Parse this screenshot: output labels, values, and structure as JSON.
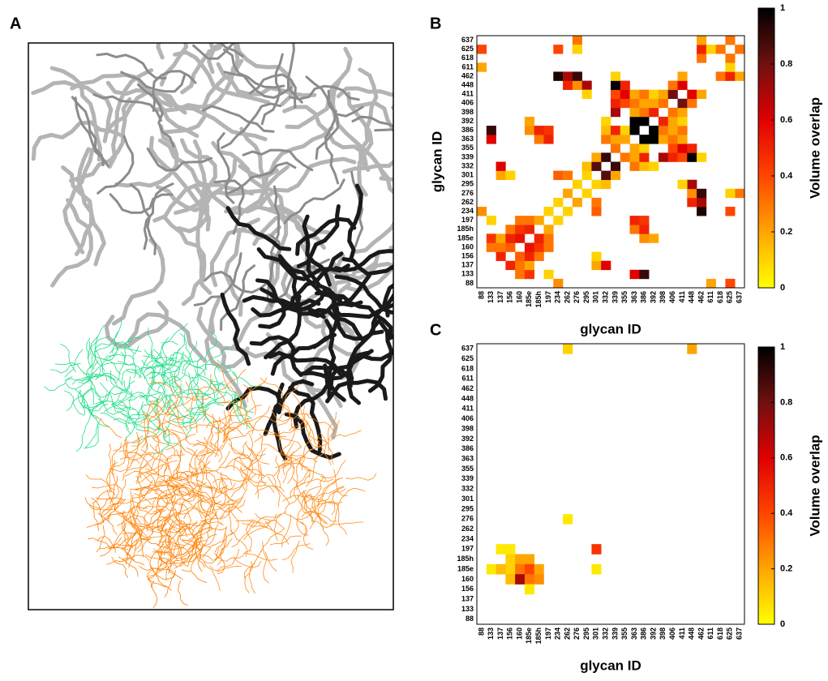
{
  "panel_labels": [
    "A",
    "B",
    "C"
  ],
  "chart_data": [
    {
      "type": "heatmap",
      "symmetric": true,
      "categories": [
        "88",
        "133",
        "137",
        "156",
        "160",
        "185e",
        "185h",
        "197",
        "234",
        "262",
        "276",
        "295",
        "301",
        "332",
        "339",
        "355",
        "363",
        "386",
        "392",
        "398",
        "406",
        "411",
        "448",
        "462",
        "611",
        "618",
        "625",
        "637"
      ],
      "x_label": "glycan ID",
      "y_label": "glycan ID",
      "cells": [
        {
          "x": "234",
          "y": "88",
          "value": 0.25
        },
        {
          "x": "625",
          "y": "88",
          "value": 0.4
        },
        {
          "x": "611",
          "y": "88",
          "value": 0.2
        },
        {
          "x": "160",
          "y": "133",
          "value": 0.3
        },
        {
          "x": "185e",
          "y": "133",
          "value": 0.45
        },
        {
          "x": "197",
          "y": "133",
          "value": 0.1
        },
        {
          "x": "363",
          "y": "133",
          "value": 0.6
        },
        {
          "x": "386",
          "y": "133",
          "value": 0.9
        },
        {
          "x": "156",
          "y": "137",
          "value": 0.5
        },
        {
          "x": "160",
          "y": "137",
          "value": 0.3
        },
        {
          "x": "185e",
          "y": "137",
          "value": 0.2
        },
        {
          "x": "301",
          "y": "137",
          "value": 0.2
        },
        {
          "x": "332",
          "y": "137",
          "value": 0.6
        },
        {
          "x": "160",
          "y": "156",
          "value": 0.35
        },
        {
          "x": "185e",
          "y": "156",
          "value": 0.5
        },
        {
          "x": "185h",
          "y": "156",
          "value": 0.3
        },
        {
          "x": "301",
          "y": "156",
          "value": 0.1
        },
        {
          "x": "185e",
          "y": "160",
          "value": 0.55
        },
        {
          "x": "185h",
          "y": "160",
          "value": 0.45
        },
        {
          "x": "197",
          "y": "160",
          "value": 0.3
        },
        {
          "x": "185h",
          "y": "185e",
          "value": 0.5
        },
        {
          "x": "197",
          "y": "185e",
          "value": 0.3
        },
        {
          "x": "386",
          "y": "185e",
          "value": 0.25
        },
        {
          "x": "392",
          "y": "185e",
          "value": 0.2
        },
        {
          "x": "197",
          "y": "185h",
          "value": 0.2
        },
        {
          "x": "363",
          "y": "185h",
          "value": 0.3
        },
        {
          "x": "386",
          "y": "185h",
          "value": 0.5
        },
        {
          "x": "234",
          "y": "197",
          "value": 0.1
        },
        {
          "x": "363",
          "y": "197",
          "value": 0.5
        },
        {
          "x": "386",
          "y": "197",
          "value": 0.45
        },
        {
          "x": "262",
          "y": "234",
          "value": 0.1
        },
        {
          "x": "301",
          "y": "234",
          "value": 0.35
        },
        {
          "x": "462",
          "y": "234",
          "value": 0.95
        },
        {
          "x": "625",
          "y": "234",
          "value": 0.4
        },
        {
          "x": "276",
          "y": "262",
          "value": 0.2
        },
        {
          "x": "301",
          "y": "262",
          "value": 0.3
        },
        {
          "x": "448",
          "y": "262",
          "value": 0.5
        },
        {
          "x": "462",
          "y": "262",
          "value": 0.7
        },
        {
          "x": "295",
          "y": "276",
          "value": 0.1
        },
        {
          "x": "448",
          "y": "276",
          "value": 0.25
        },
        {
          "x": "462",
          "y": "276",
          "value": 0.9
        },
        {
          "x": "637",
          "y": "276",
          "value": 0.3
        },
        {
          "x": "625",
          "y": "276",
          "value": 0.1
        },
        {
          "x": "301",
          "y": "295",
          "value": 0.1
        },
        {
          "x": "332",
          "y": "295",
          "value": 0.15
        },
        {
          "x": "448",
          "y": "295",
          "value": 0.7
        },
        {
          "x": "411",
          "y": "295",
          "value": 0.1
        },
        {
          "x": "332",
          "y": "301",
          "value": 0.85
        },
        {
          "x": "339",
          "y": "301",
          "value": 0.2
        },
        {
          "x": "339",
          "y": "332",
          "value": 0.9
        },
        {
          "x": "363",
          "y": "332",
          "value": 0.3
        },
        {
          "x": "386",
          "y": "332",
          "value": 0.15
        },
        {
          "x": "392",
          "y": "332",
          "value": 0.1
        },
        {
          "x": "355",
          "y": "339",
          "value": 0.3
        },
        {
          "x": "363",
          "y": "339",
          "value": 0.2
        },
        {
          "x": "386",
          "y": "339",
          "value": 0.5
        },
        {
          "x": "398",
          "y": "339",
          "value": 0.7
        },
        {
          "x": "406",
          "y": "339",
          "value": 0.5
        },
        {
          "x": "411",
          "y": "339",
          "value": 0.4
        },
        {
          "x": "448",
          "y": "339",
          "value": 1
        },
        {
          "x": "462",
          "y": "339",
          "value": 0.1
        },
        {
          "x": "363",
          "y": "355",
          "value": 0.2
        },
        {
          "x": "386",
          "y": "355",
          "value": 0.1
        },
        {
          "x": "406",
          "y": "355",
          "value": 0.4
        },
        {
          "x": "411",
          "y": "355",
          "value": 0.6
        },
        {
          "x": "448",
          "y": "355",
          "value": 0.5
        },
        {
          "x": "386",
          "y": "363",
          "value": 1
        },
        {
          "x": "392",
          "y": "363",
          "value": 1
        },
        {
          "x": "398",
          "y": "363",
          "value": 0.2
        },
        {
          "x": "406",
          "y": "363",
          "value": 0.3
        },
        {
          "x": "411",
          "y": "363",
          "value": 0.2
        },
        {
          "x": "392",
          "y": "386",
          "value": 1
        },
        {
          "x": "398",
          "y": "386",
          "value": 0.3
        },
        {
          "x": "406",
          "y": "386",
          "value": 0.2
        },
        {
          "x": "411",
          "y": "386",
          "value": 0.3
        },
        {
          "x": "398",
          "y": "392",
          "value": 0.5
        },
        {
          "x": "406",
          "y": "392",
          "value": 0.2
        },
        {
          "x": "411",
          "y": "392",
          "value": 0.1
        },
        {
          "x": "406",
          "y": "398",
          "value": 0.3
        },
        {
          "x": "411",
          "y": "398",
          "value": 0.2
        },
        {
          "x": "411",
          "y": "406",
          "value": 0.8
        },
        {
          "x": "448",
          "y": "406",
          "value": 0.3
        },
        {
          "x": "448",
          "y": "411",
          "value": 0.6
        },
        {
          "x": "462",
          "y": "411",
          "value": 0.2
        },
        {
          "x": "618",
          "y": "462",
          "value": 0.3
        },
        {
          "x": "625",
          "y": "462",
          "value": 0.5
        },
        {
          "x": "637",
          "y": "462",
          "value": 0.2
        },
        {
          "x": "625",
          "y": "611",
          "value": 0.1
        },
        {
          "x": "625",
          "y": "618",
          "value": 0.3
        },
        {
          "x": "637",
          "y": "625",
          "value": 0.3
        }
      ],
      "colorbar": {
        "label": "Volume overlap",
        "lim": [
          0,
          1
        ],
        "ticks": [
          0,
          0.2,
          0.4,
          0.6,
          0.8,
          1
        ],
        "colors": [
          "#ffff00",
          "#ffa500",
          "#ff4500",
          "#e00000",
          "#701010",
          "#000000"
        ]
      }
    },
    {
      "type": "heatmap",
      "symmetric": false,
      "categories": [
        "88",
        "133",
        "137",
        "156",
        "160",
        "185e",
        "185h",
        "197",
        "234",
        "262",
        "276",
        "295",
        "301",
        "332",
        "339",
        "355",
        "363",
        "386",
        "392",
        "398",
        "406",
        "411",
        "448",
        "462",
        "611",
        "618",
        "625",
        "637"
      ],
      "x_label": "glycan ID",
      "y_label": "",
      "cells": [
        {
          "x": "262",
          "y": "637",
          "value": 0.1
        },
        {
          "x": "448",
          "y": "637",
          "value": 0.2
        },
        {
          "x": "262",
          "y": "276",
          "value": 0.05
        },
        {
          "x": "301",
          "y": "197",
          "value": 0.45
        },
        {
          "x": "301",
          "y": "185e",
          "value": 0.05
        },
        {
          "x": "137",
          "y": "197",
          "value": 0.05
        },
        {
          "x": "156",
          "y": "197",
          "value": 0.05
        },
        {
          "x": "156",
          "y": "185h",
          "value": 0.1
        },
        {
          "x": "160",
          "y": "185h",
          "value": 0.2
        },
        {
          "x": "185e",
          "y": "185h",
          "value": 0.2
        },
        {
          "x": "133",
          "y": "185e",
          "value": 0.05
        },
        {
          "x": "137",
          "y": "185e",
          "value": 0.15
        },
        {
          "x": "156",
          "y": "185e",
          "value": 0.1
        },
        {
          "x": "160",
          "y": "185e",
          "value": 0.3
        },
        {
          "x": "185e",
          "y": "185e",
          "value": 0.4
        },
        {
          "x": "185h",
          "y": "185e",
          "value": 0.2
        },
        {
          "x": "156",
          "y": "160",
          "value": 0.15
        },
        {
          "x": "160",
          "y": "160",
          "value": 0.7
        },
        {
          "x": "185e",
          "y": "160",
          "value": 0.3
        },
        {
          "x": "185h",
          "y": "160",
          "value": 0.25
        },
        {
          "x": "185e",
          "y": "156",
          "value": 0.05
        }
      ],
      "colorbar": {
        "label": "Volume overlap",
        "lim": [
          0,
          1
        ],
        "ticks": [
          0,
          0.2,
          0.4,
          0.6,
          0.8,
          1
        ],
        "colors": [
          "#ffff00",
          "#ffa500",
          "#ff4500",
          "#e00000",
          "#701010",
          "#000000"
        ]
      }
    }
  ]
}
